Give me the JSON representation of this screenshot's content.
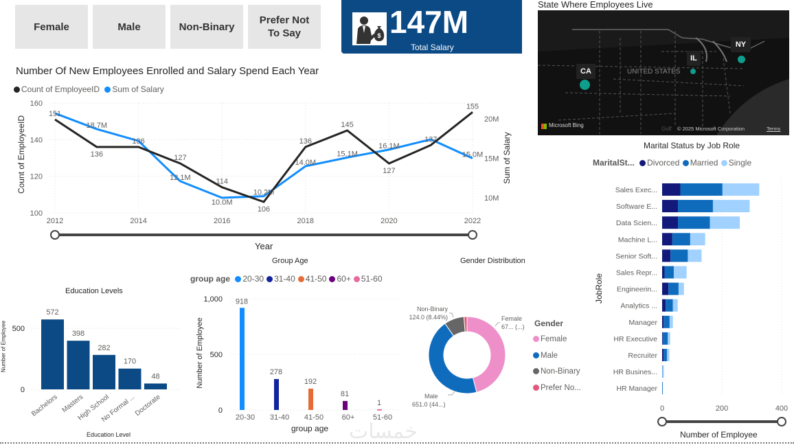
{
  "slicer": {
    "items": [
      "Female",
      "Male",
      "Non-Binary",
      "Prefer Not To Say"
    ]
  },
  "kpi": {
    "value": "147M",
    "label": "Total Salary",
    "icon": "businessman-money-bag-icon",
    "bg": "#0b4a85"
  },
  "map": {
    "title": "State Where Employees Live",
    "country_label": "UNITED STATES",
    "states": [
      "CA",
      "IL",
      "NY"
    ],
    "state_size": [
      3,
      1,
      2
    ],
    "bubble_color": "#0f9d8c",
    "bing": "Microsoft Bing",
    "copyright": "© 2025 Microsoft Corporation",
    "terms": "Terms",
    "gulf": "Gulf"
  },
  "chart_data": [
    {
      "type": "line",
      "title": "Number Of New Employees Enrolled and Salary Spend Each Year",
      "xlabel": "Year",
      "ylabel": "Count of EmployeeID",
      "y2label": "Sum of Salary",
      "x": [
        2012,
        2013,
        2014,
        2015,
        2016,
        2017,
        2018,
        2019,
        2020,
        2021,
        2022
      ],
      "xticks": [
        "2012",
        "2014",
        "2016",
        "2018",
        "2020",
        "2022"
      ],
      "ylim": [
        100,
        160
      ],
      "yticks": [
        "100",
        "120",
        "140",
        "160"
      ],
      "y2ticks": [
        "10M",
        "15M",
        "20M"
      ],
      "y2_values_millions": [
        10,
        15,
        20
      ],
      "grid": true,
      "legend": "top-left",
      "series": [
        {
          "name": "Count of EmployeeID",
          "color": "#252423",
          "axis": "left",
          "values": [
            151,
            136,
            136,
            127,
            114,
            106,
            136,
            145,
            127,
            137,
            155
          ],
          "labels": [
            "151",
            "136",
            "136",
            "127",
            "114",
            "106",
            "136",
            "145",
            "127",
            "137",
            "155"
          ]
        },
        {
          "name": "Sum of Salary",
          "color": "#118dff",
          "axis": "right",
          "values_millions": [
            20.7,
            18.7,
            17.2,
            12.1,
            10.0,
            10.2,
            14.0,
            15.1,
            16.1,
            17.4,
            15.0
          ],
          "labels": [
            "",
            "18.7M",
            "",
            "12.1M",
            "10.0M",
            "10.2M",
            "14.0M",
            "15.1M",
            "16.1M",
            "",
            "15.0M"
          ]
        }
      ]
    },
    {
      "type": "bar",
      "title": "Education Levels",
      "xlabel": "Education Level",
      "ylabel": "Number of Employee",
      "categories": [
        "Bachelors",
        "Masters",
        "High School",
        "No Formal ...",
        "Doctorate"
      ],
      "values": [
        572,
        398,
        282,
        170,
        48
      ],
      "ylim": [
        0,
        650
      ],
      "yticks": [
        "0",
        "500"
      ],
      "color": "#0b4a85"
    },
    {
      "type": "bar",
      "title": "Group Age",
      "xlabel": "group age",
      "ylabel": "Number of Employee",
      "legend_title": "group age",
      "categories": [
        "20-30",
        "31-40",
        "41-50",
        "60+",
        "51-60"
      ],
      "values": [
        918,
        278,
        192,
        81,
        1
      ],
      "colors": [
        "#118dff",
        "#12239e",
        "#e66c37",
        "#6b007b",
        "#e66ca0"
      ],
      "ylim": [
        0,
        1000
      ],
      "yticks": [
        "0",
        "500",
        "1,000"
      ],
      "legend": "top"
    },
    {
      "type": "pie",
      "title": "Gender Distribution",
      "legend_title": "Gender",
      "categories": [
        "Female",
        "Male",
        "Non-Binary",
        "Prefer No..."
      ],
      "values": [
        676,
        651,
        124,
        19
      ],
      "colors": [
        "#ee8fc9",
        "#0f6cbd",
        "#666666",
        "#e0587a"
      ],
      "labels": [
        [
          "Female",
          "67... (...)"
        ],
        [
          "Male",
          "651.0 (44...)"
        ],
        [
          "Non-Binary",
          "124.0 (8.44%)"
        ],
        null
      ],
      "legend": "right"
    },
    {
      "type": "bar",
      "orientation": "horizontal-stacked",
      "title": "Marital Status by Job Role",
      "legend_title": "MaritalSt...",
      "xlabel": "Number of Employee",
      "ylabel": "JobRole",
      "xlim": [
        0,
        400
      ],
      "xticks": [
        "0",
        "200",
        "400"
      ],
      "categories": [
        "Sales Exec...",
        "Software E...",
        "Data Scien...",
        "Machine L...",
        "Senior Soft...",
        "Sales Repr...",
        "Engineerin...",
        "Analytics ...",
        "Manager",
        "HR Executive",
        "Recruiter",
        "HR Busines...",
        "HR Manager"
      ],
      "series": [
        {
          "name": "Divorced",
          "color": "#12197a",
          "values": [
            61,
            53,
            53,
            34,
            28,
            8,
            21,
            12,
            5,
            2,
            5,
            0,
            0
          ]
        },
        {
          "name": "Married",
          "color": "#0f6cbd",
          "values": [
            141,
            117,
            107,
            60,
            58,
            31,
            34,
            24,
            20,
            17,
            11,
            1,
            2
          ]
        },
        {
          "name": "Single",
          "color": "#a0d1ff",
          "values": [
            123,
            123,
            100,
            50,
            46,
            43,
            18,
            16,
            11,
            8,
            8,
            5,
            1
          ]
        }
      ],
      "legend": "top"
    }
  ],
  "watermark": "خمسات"
}
